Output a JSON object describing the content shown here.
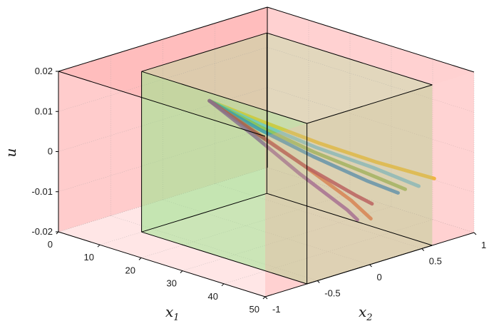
{
  "chart_data": {
    "type": "line",
    "view": "3d",
    "title": "",
    "xlabel": "x",
    "xlabel_subscript": "1",
    "ylabel": "x",
    "ylabel_subscript": "2",
    "zlabel": "u",
    "xlim": [
      0,
      50
    ],
    "ylim": [
      -1,
      1
    ],
    "zlim": [
      -0.02,
      0.02
    ],
    "x_ticks": [
      "0",
      "10",
      "20",
      "30",
      "40",
      "50"
    ],
    "y_ticks": [
      "-1",
      "-0.5",
      "0",
      "0.5",
      "1"
    ],
    "z_ticks": [
      "-0.02",
      "-0.01",
      "0",
      "0.01",
      "0.02"
    ],
    "grid": true,
    "legend": "none",
    "colors": {
      "outer_box": "#ff9a9a",
      "inner_box": "#9ee68e",
      "edges": "#000000"
    },
    "outer_region": {
      "x": [
        0,
        50
      ],
      "x2": [
        -1,
        1
      ],
      "u": [
        -0.02,
        0.02
      ]
    },
    "inner_region": {
      "x": [
        10,
        50
      ],
      "x2": [
        -0.6,
        0.6
      ],
      "u": [
        -0.02,
        0.02
      ]
    },
    "series": [
      {
        "color": "#e6b800",
        "points": [
          [
            10,
            0.05,
            0.0075
          ],
          [
            20,
            0.17,
            0.0045
          ],
          [
            30,
            0.3,
            0.0015
          ],
          [
            40,
            0.45,
            -0.0012
          ],
          [
            50,
            0.62,
            -0.0035
          ]
        ]
      },
      {
        "color": "#4bb8d6",
        "points": [
          [
            10,
            0.05,
            0.0075
          ],
          [
            20,
            0.15,
            0.004
          ],
          [
            30,
            0.28,
            0.0005
          ],
          [
            40,
            0.43,
            -0.0025
          ],
          [
            48,
            0.55,
            -0.0055
          ]
        ]
      },
      {
        "color": "#77ac30",
        "points": [
          [
            10,
            0.05,
            0.0075
          ],
          [
            20,
            0.14,
            0.0035
          ],
          [
            30,
            0.26,
            -0.0005
          ],
          [
            40,
            0.4,
            -0.004
          ],
          [
            46,
            0.5,
            -0.0065
          ]
        ]
      },
      {
        "color": "#0072bd",
        "points": [
          [
            10,
            0.05,
            0.0075
          ],
          [
            20,
            0.13,
            0.003
          ],
          [
            30,
            0.25,
            -0.0015
          ],
          [
            40,
            0.38,
            -0.0055
          ],
          [
            45,
            0.47,
            -0.0075
          ]
        ]
      },
      {
        "color": "#d95319",
        "points": [
          [
            10,
            0.05,
            0.0075
          ],
          [
            20,
            0.1,
            0.0025
          ],
          [
            30,
            0.16,
            -0.003
          ],
          [
            40,
            0.22,
            -0.009
          ],
          [
            44,
            0.25,
            -0.0125
          ]
        ]
      },
      {
        "color": "#a2142f",
        "points": [
          [
            10,
            0.05,
            0.0075
          ],
          [
            20,
            0.11,
            0.002
          ],
          [
            30,
            0.18,
            -0.0035
          ],
          [
            40,
            0.26,
            -0.008
          ],
          [
            43,
            0.3,
            -0.0095
          ]
        ]
      },
      {
        "color": "#7e2f8e",
        "points": [
          [
            10,
            0.05,
            0.0075
          ],
          [
            20,
            0.09,
            0.0015
          ],
          [
            30,
            0.13,
            -0.005
          ],
          [
            40,
            0.18,
            -0.011
          ],
          [
            42,
            0.2,
            -0.013
          ]
        ]
      }
    ]
  }
}
